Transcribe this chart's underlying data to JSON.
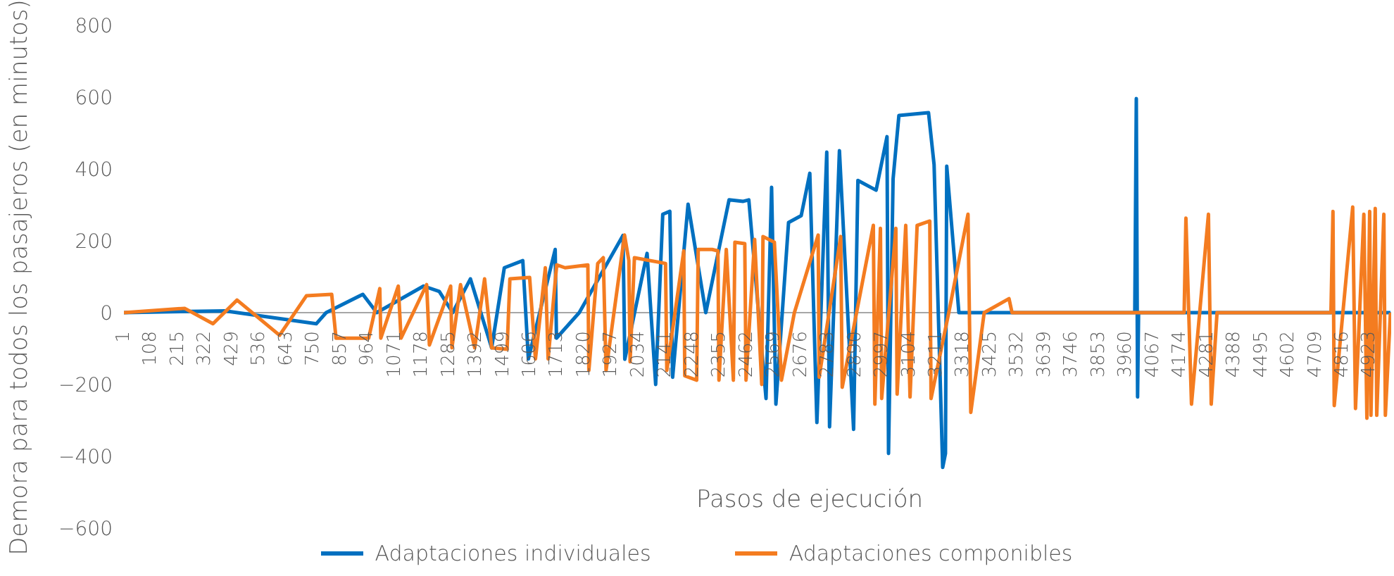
{
  "chart_data": {
    "type": "line",
    "xlabel": "Pasos de ejecución",
    "ylabel": "Demora para todos los pasajeros (en minutos)",
    "ylim": [
      -600,
      800
    ],
    "yticks": [
      -600,
      -400,
      -200,
      0,
      200,
      400,
      600,
      800
    ],
    "xlim": [
      1,
      5008
    ],
    "xticks": [
      1,
      108,
      215,
      322,
      429,
      536,
      643,
      750,
      857,
      964,
      1071,
      1178,
      1285,
      1392,
      1499,
      1606,
      1713,
      1820,
      1927,
      2034,
      2141,
      2248,
      2355,
      2462,
      2569,
      2676,
      2783,
      2890,
      2997,
      3104,
      3211,
      3318,
      3425,
      3532,
      3639,
      3746,
      3853,
      3960,
      4067,
      4174,
      4281,
      4388,
      4495,
      4602,
      4709,
      4816,
      4923
    ],
    "legend": "bottom",
    "marker": "none",
    "line_style": "solid",
    "series": [
      {
        "name": "Adaptaciones individuales",
        "color": "#0070c0",
        "x": [
          1,
          400,
          761,
          800,
          945,
          1000,
          1185,
          1247,
          1300,
          1370,
          1454,
          1504,
          1577,
          1599,
          1705,
          1710,
          1800,
          1973,
          1980,
          2068,
          2102,
          2130,
          2158,
          2169,
          2230,
          2300,
          2392,
          2448,
          2470,
          2538,
          2560,
          2577,
          2627,
          2677,
          2711,
          2739,
          2778,
          2789,
          2828,
          2884,
          2901,
          2973,
          3016,
          3022,
          3040,
          3063,
          3180,
          3202,
          3236,
          3247,
          3252,
          3300,
          3500,
          3995,
          4001,
          4006,
          4010,
          4500,
          5005
        ],
        "values": [
          0,
          5,
          -31,
          0,
          51,
          0,
          74,
          59,
          0,
          94,
          -98,
          125,
          145,
          -129,
          176,
          -71,
          0,
          215,
          -130,
          165,
          -200,
          274,
          282,
          -180,
          302,
          0,
          314,
          310,
          314,
          -239,
          349,
          -255,
          251,
          270,
          388,
          -306,
          447,
          -318,
          451,
          -325,
          368,
          341,
          490,
          -392,
          372,
          549,
          557,
          412,
          -431,
          -392,
          408,
          0,
          0,
          0,
          596,
          -235,
          0,
          0,
          0
        ]
      },
      {
        "name": "Adaptaciones componibles",
        "color": "#f47c20",
        "x": [
          1,
          241,
          353,
          448,
          616,
          722,
          822,
          839,
          968,
          1012,
          1016,
          1085,
          1096,
          1197,
          1208,
          1292,
          1297,
          1331,
          1387,
          1426,
          1454,
          1515,
          1526,
          1604,
          1627,
          1666,
          1677,
          1711,
          1744,
          1834,
          1838,
          1873,
          1895,
          1906,
          1979,
          1996,
          2001,
          2018,
          2141,
          2146,
          2213,
          2217,
          2264,
          2270,
          2325,
          2348,
          2352,
          2381,
          2409,
          2415,
          2454,
          2459,
          2493,
          2521,
          2526,
          2571,
          2599,
          2650,
          2744,
          2748,
          2833,
          2839,
          2962,
          2968,
          2990,
          2995,
          3051,
          3056,
          3090,
          3107,
          3135,
          3185,
          3190,
          3260,
          3336,
          3347,
          3400,
          3498,
          3510,
          4190,
          4197,
          4219,
          4286,
          4297,
          4320,
          4770,
          4778,
          4783,
          4856,
          4867,
          4900,
          4912,
          4923,
          4928,
          4945,
          4951,
          4979,
          4985,
          5005
        ],
        "values": [
          0,
          12,
          -31,
          35,
          -63,
          47,
          51,
          -71,
          -71,
          67,
          -71,
          74,
          -71,
          78,
          -90,
          74,
          -98,
          78,
          -98,
          94,
          -98,
          -102,
          94,
          98,
          -129,
          125,
          -129,
          133,
          125,
          133,
          -161,
          137,
          153,
          -161,
          216,
          145,
          -137,
          153,
          137,
          -161,
          172,
          -176,
          -188,
          176,
          176,
          172,
          -188,
          176,
          -188,
          196,
          192,
          -188,
          204,
          -200,
          212,
          196,
          -188,
          0,
          216,
          -180,
          212,
          -208,
          243,
          -255,
          235,
          -239,
          235,
          -227,
          243,
          -235,
          243,
          255,
          -239,
          0,
          274,
          -278,
          0,
          39,
          0,
          0,
          263,
          -255,
          274,
          -255,
          0,
          0,
          282,
          -259,
          294,
          -267,
          274,
          -294,
          282,
          -286,
          290,
          -286,
          274,
          -286,
          0
        ]
      }
    ]
  }
}
